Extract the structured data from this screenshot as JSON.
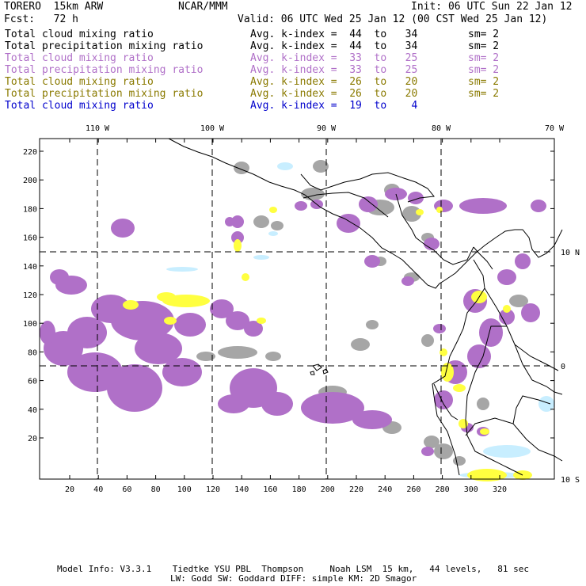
{
  "header": {
    "model": "TORERO  15km ARW",
    "org": "NCAR/MMM",
    "init": "Init: 06 UTC Sun 22 Jan 12",
    "fcst": "Fcst:   72 h",
    "valid": "Valid: 06 UTC Wed 25 Jan 12 (00 CST Wed 25 Jan 12)"
  },
  "legend": [
    {
      "field": "Total cloud mixing ratio",
      "kindex": "Avg. k-index =  44  to   34",
      "sm": "sm= 2",
      "color": "#000000"
    },
    {
      "field": "Total precipitation mixing ratio",
      "kindex": "Avg. k-index =  44  to   34",
      "sm": "sm= 2",
      "color": "#000000"
    },
    {
      "field": "Total cloud mixing ratio",
      "kindex": "Avg. k-index =  33  to   25",
      "sm": "sm= 2",
      "color": "#b070c8"
    },
    {
      "field": "Total precipitation mixing ratio",
      "kindex": "Avg. k-index =  33  to   25",
      "sm": "sm= 2",
      "color": "#b070c8"
    },
    {
      "field": "Total cloud mixing ratio",
      "kindex": "Avg. k-index =  26  to   20",
      "sm": "sm= 2",
      "color": "#8a7a00"
    },
    {
      "field": "Total precipitation mixing ratio",
      "kindex": "Avg. k-index =  26  to   20",
      "sm": "sm= 2",
      "color": "#8a7a00"
    },
    {
      "field": "Total cloud mixing ratio",
      "kindex": "Avg. k-index =  19  to    4",
      "sm": "",
      "color": "#0000cc"
    }
  ],
  "map": {
    "lon_labels": [
      "110 W",
      "100 W",
      "90 W",
      "80 W",
      "70 W"
    ],
    "lat_labels": [
      "10 N",
      "0",
      "10 S"
    ],
    "y_ticks": [
      "220",
      "200",
      "180",
      "160",
      "140",
      "120",
      "100",
      "80",
      "60",
      "40",
      "20"
    ],
    "x_ticks": [
      "20",
      "40",
      "60",
      "80",
      "100",
      "120",
      "140",
      "160",
      "180",
      "200",
      "220",
      "240",
      "260",
      "280",
      "300",
      "320"
    ],
    "colors": {
      "gray": "#a6a6a6",
      "purple": "#b070c8",
      "yellow": "#ffff40",
      "lightblue": "#c8eeff"
    }
  },
  "footer": {
    "line1": "Model Info: V3.3.1    Tiedtke YSU PBL  Thompson     Noah LSM  15 km,   44 levels,   81 sec",
    "line2": "LW: Godd SW: Goddard DIFF: simple KM: 2D Smagor"
  }
}
